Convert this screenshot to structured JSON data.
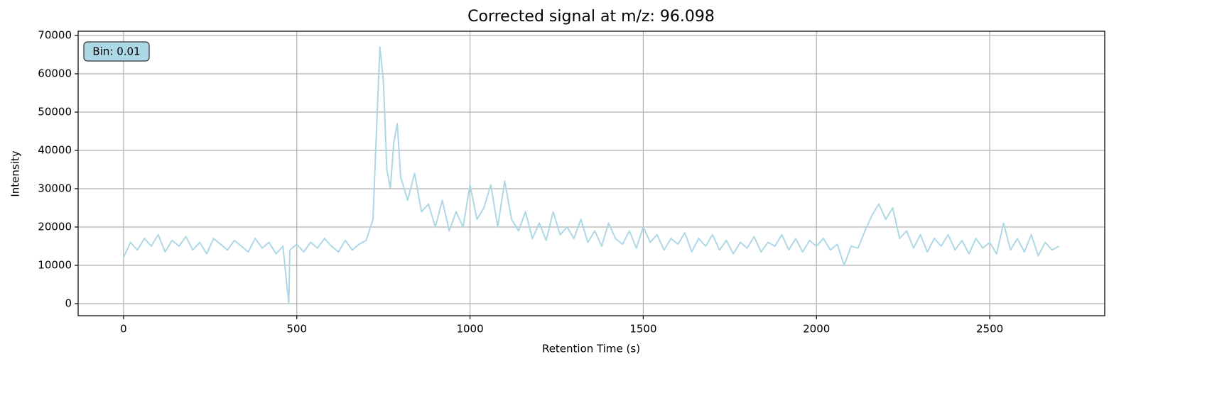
{
  "chart_data": {
    "type": "line",
    "title": "Corrected signal at m/z: 96.098",
    "x_label": "Retention Time (s)",
    "y_label": "Intensity",
    "annotation": "Bin: 0.01",
    "color": "#add8e6",
    "grid": true,
    "xlim": [
      -131,
      2832
    ],
    "ylim": [
      -3150,
      71110
    ],
    "xticks": [
      0,
      500,
      1000,
      1500,
      2000,
      2500
    ],
    "yticks": [
      0,
      10000,
      20000,
      30000,
      40000,
      50000,
      60000,
      70000
    ],
    "x": [
      0,
      20,
      40,
      60,
      80,
      100,
      120,
      140,
      160,
      180,
      200,
      220,
      240,
      260,
      280,
      300,
      320,
      340,
      360,
      380,
      400,
      420,
      440,
      460,
      477,
      480,
      500,
      520,
      540,
      560,
      580,
      600,
      620,
      640,
      660,
      680,
      700,
      720,
      730,
      740,
      750,
      760,
      770,
      780,
      790,
      800,
      820,
      840,
      860,
      880,
      900,
      920,
      940,
      960,
      980,
      1000,
      1020,
      1040,
      1060,
      1080,
      1100,
      1120,
      1140,
      1160,
      1180,
      1200,
      1220,
      1240,
      1260,
      1280,
      1300,
      1320,
      1340,
      1360,
      1380,
      1400,
      1420,
      1440,
      1460,
      1480,
      1500,
      1520,
      1540,
      1560,
      1580,
      1600,
      1620,
      1640,
      1660,
      1680,
      1700,
      1720,
      1740,
      1760,
      1780,
      1800,
      1820,
      1840,
      1860,
      1880,
      1900,
      1920,
      1940,
      1960,
      1980,
      2000,
      2020,
      2040,
      2060,
      2080,
      2100,
      2120,
      2140,
      2160,
      2180,
      2200,
      2220,
      2240,
      2260,
      2280,
      2300,
      2320,
      2340,
      2360,
      2380,
      2400,
      2420,
      2440,
      2460,
      2480,
      2500,
      2520,
      2540,
      2560,
      2580,
      2600,
      2620,
      2640,
      2660,
      2680,
      2700
    ],
    "values": [
      12000,
      16000,
      14000,
      17000,
      15000,
      18000,
      13500,
      16500,
      15000,
      17500,
      14000,
      16000,
      13000,
      17000,
      15500,
      14000,
      16500,
      15000,
      13500,
      17000,
      14500,
      16000,
      13000,
      15000,
      0,
      14000,
      15500,
      13500,
      16000,
      14500,
      17000,
      15000,
      13500,
      16500,
      14000,
      15500,
      16500,
      22000,
      45000,
      67000,
      58000,
      35000,
      30000,
      42000,
      47000,
      33000,
      27000,
      34000,
      24000,
      26000,
      20000,
      27000,
      19000,
      24000,
      20000,
      31000,
      22000,
      25000,
      31000,
      20000,
      32000,
      22000,
      19000,
      24000,
      17000,
      21000,
      16500,
      24000,
      18000,
      20000,
      17000,
      22000,
      16000,
      19000,
      15000,
      21000,
      17000,
      15500,
      19000,
      14500,
      20000,
      16000,
      18000,
      14000,
      17000,
      15500,
      18500,
      13500,
      17000,
      15000,
      18000,
      14000,
      16500,
      13000,
      16000,
      14500,
      17500,
      13500,
      16000,
      15000,
      18000,
      14000,
      17000,
      13500,
      16500,
      15000,
      17000,
      14000,
      15500,
      10000,
      15000,
      14500,
      19000,
      23000,
      26000,
      22000,
      25000,
      17000,
      19000,
      14500,
      18000,
      13500,
      17000,
      15000,
      18000,
      14000,
      16500,
      13000,
      17000,
      14500,
      16000,
      13000,
      21000,
      14000,
      17000,
      13500,
      18000,
      12500,
      16000,
      14000,
      15000
    ]
  }
}
